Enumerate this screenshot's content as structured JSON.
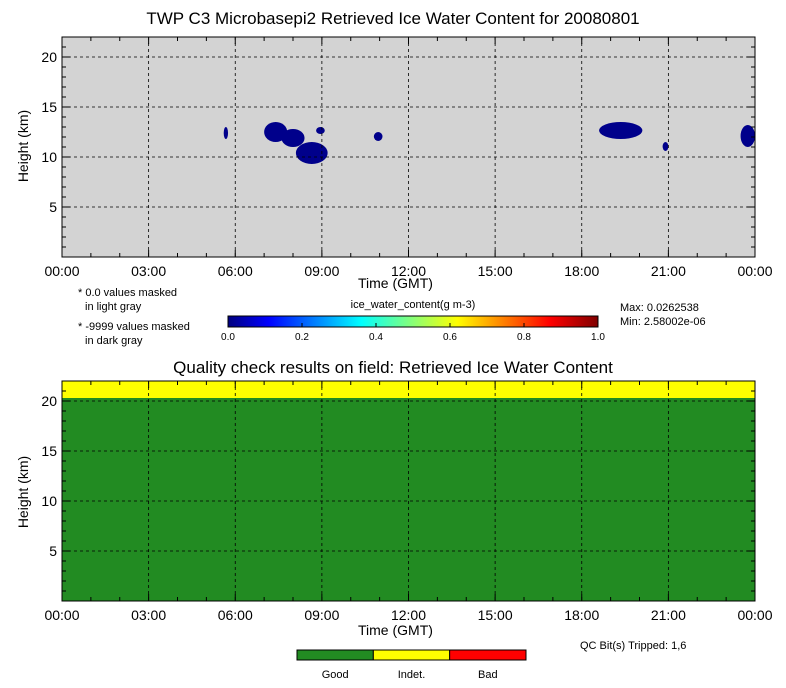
{
  "chart_data": [
    {
      "type": "heatmap",
      "title": "TWP C3 Microbasepi2 Retrieved Ice Water Content for 20080801",
      "xlabel": "Time (GMT)",
      "ylabel": "Height (km)",
      "xlim": [
        0,
        24
      ],
      "ylim": [
        0,
        22
      ],
      "x_tick_labels": [
        "00:00",
        "03:00",
        "06:00",
        "09:00",
        "12:00",
        "15:00",
        "18:00",
        "21:00",
        "00:00"
      ],
      "y_tick_labels": [
        "5",
        "10",
        "15",
        "20"
      ],
      "grid": true,
      "background_color": "#d3d3d3",
      "notes": [
        "* 0.0 values masked",
        "in light gray",
        "* -9999 values masked",
        "in dark gray"
      ],
      "colorbar": {
        "label": "ice_water_content(g m-3)",
        "tick_labels": [
          "0.0",
          "0.2",
          "0.4",
          "0.6",
          "0.8",
          "1.0"
        ],
        "range": [
          0,
          1
        ]
      },
      "max_text": "Max: 0.0262538",
      "min_text": "Min: 2.58002e-06",
      "cloud_color": "#00008b",
      "cloud_regions": [
        {
          "t0": 5.6,
          "t1": 5.75,
          "h0": 11.8,
          "h1": 13.0
        },
        {
          "t0": 7.0,
          "t1": 7.8,
          "h0": 11.5,
          "h1": 13.5
        },
        {
          "t0": 7.6,
          "t1": 8.4,
          "h0": 11.0,
          "h1": 12.8
        },
        {
          "t0": 8.1,
          "t1": 9.2,
          "h0": 9.3,
          "h1": 11.5
        },
        {
          "t0": 8.8,
          "t1": 9.1,
          "h0": 12.3,
          "h1": 13.0
        },
        {
          "t0": 10.8,
          "t1": 11.1,
          "h0": 11.6,
          "h1": 12.5
        },
        {
          "t0": 18.6,
          "t1": 20.1,
          "h0": 11.8,
          "h1": 13.5
        },
        {
          "t0": 20.8,
          "t1": 21.0,
          "h0": 10.6,
          "h1": 11.5
        },
        {
          "t0": 23.5,
          "t1": 24.0,
          "h0": 11.0,
          "h1": 13.2
        }
      ]
    },
    {
      "type": "heatmap",
      "title": "Quality check results on field: Retrieved Ice Water Content",
      "xlabel": "Time (GMT)",
      "ylabel": "Height (km)",
      "xlim": [
        0,
        24
      ],
      "ylim": [
        0,
        22
      ],
      "x_tick_labels": [
        "00:00",
        "03:00",
        "06:00",
        "09:00",
        "12:00",
        "15:00",
        "18:00",
        "21:00",
        "00:00"
      ],
      "y_tick_labels": [
        "5",
        "10",
        "15",
        "20"
      ],
      "grid": true,
      "qc_bits_text": "QC Bit(s) Tripped: 1,6",
      "regions": [
        {
          "category": "Good",
          "h0": 0,
          "h1": 20.3
        },
        {
          "category": "Indet.",
          "h0": 20.3,
          "h1": 22
        }
      ],
      "legend": [
        {
          "label": "Good",
          "color": "#228b22"
        },
        {
          "label": "Indet.",
          "color": "#ffff00"
        },
        {
          "label": "Bad",
          "color": "#ff0000"
        }
      ]
    }
  ]
}
